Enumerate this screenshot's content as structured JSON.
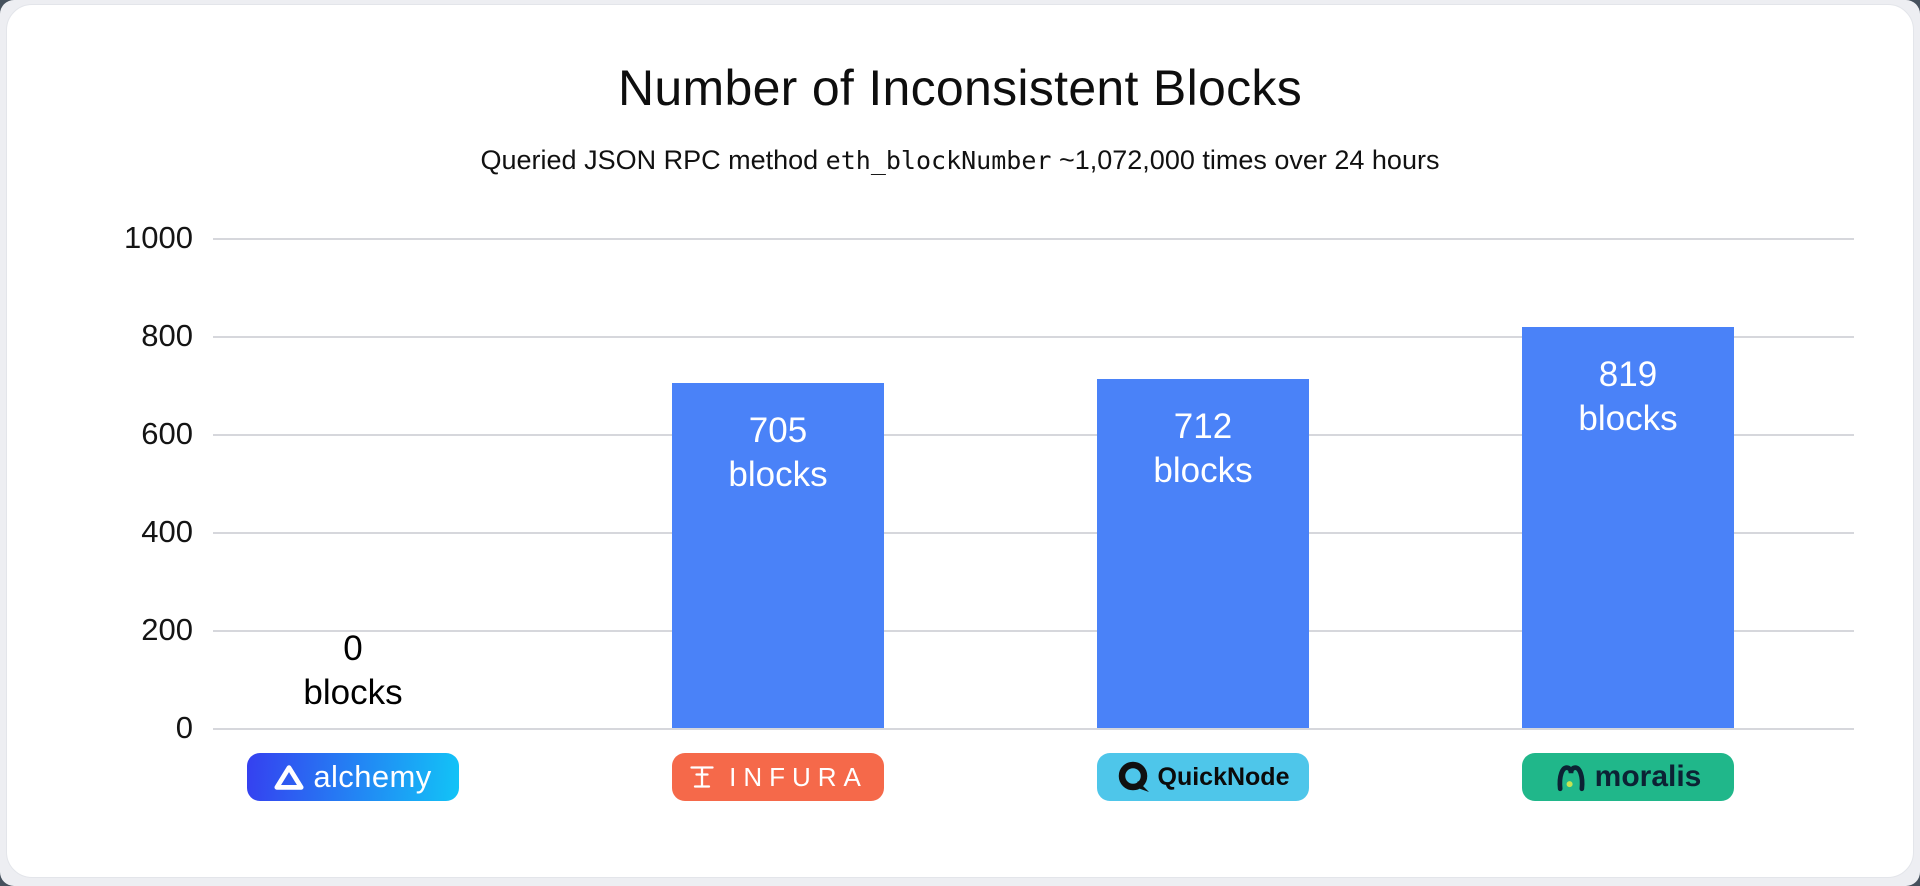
{
  "card": {
    "title": "Number of Inconsistent Blocks",
    "subtitle_prefix": "Queried JSON RPC method",
    "subtitle_code": "eth_blockNumber",
    "subtitle_suffix": "~1,072,000 times over 24 hours"
  },
  "chart_data": {
    "type": "bar",
    "title": "Number of Inconsistent Blocks",
    "subtitle": "Queried JSON RPC method eth_blockNumber ~1,072,000 times over 24 hours",
    "categories": [
      "alchemy",
      "INFURA",
      "QuickNode",
      "moralis"
    ],
    "values": [
      0,
      705,
      712,
      819
    ],
    "unit": "blocks",
    "xlabel": "",
    "ylabel": "",
    "ylim": [
      0,
      1000
    ],
    "yticks": [
      0,
      200,
      400,
      600,
      800,
      1000
    ],
    "grid": true,
    "legend": false,
    "bar_color": "#4a82f8",
    "bars": [
      {
        "name": "alchemy",
        "value": 0,
        "value_label": "0",
        "unit_label": "blocks",
        "label_position": "outside",
        "label_color": "#000000"
      },
      {
        "name": "INFURA",
        "value": 705,
        "value_label": "705",
        "unit_label": "blocks",
        "label_position": "inside",
        "label_color": "#ffffff"
      },
      {
        "name": "QuickNode",
        "value": 712,
        "value_label": "712",
        "unit_label": "blocks",
        "label_position": "inside",
        "label_color": "#ffffff"
      },
      {
        "name": "moralis",
        "value": 819,
        "value_label": "819",
        "unit_label": "blocks",
        "label_position": "inside",
        "label_color": "#ffffff"
      }
    ]
  },
  "providers": [
    {
      "label": "alchemy",
      "badge_gradient": [
        "#3540f0",
        "#12c4f7"
      ],
      "text_color": "#ffffff"
    },
    {
      "label": "INFURA",
      "badge_color": "#f5694a",
      "text_color": "#ffffff"
    },
    {
      "label": "QuickNode",
      "badge_color": "#4ec6ea",
      "text_color": "#0b0b0b"
    },
    {
      "label": "moralis",
      "badge_color": "#20b78a",
      "text_color": "#0c2234",
      "dot_color": "#c6e353"
    }
  ]
}
